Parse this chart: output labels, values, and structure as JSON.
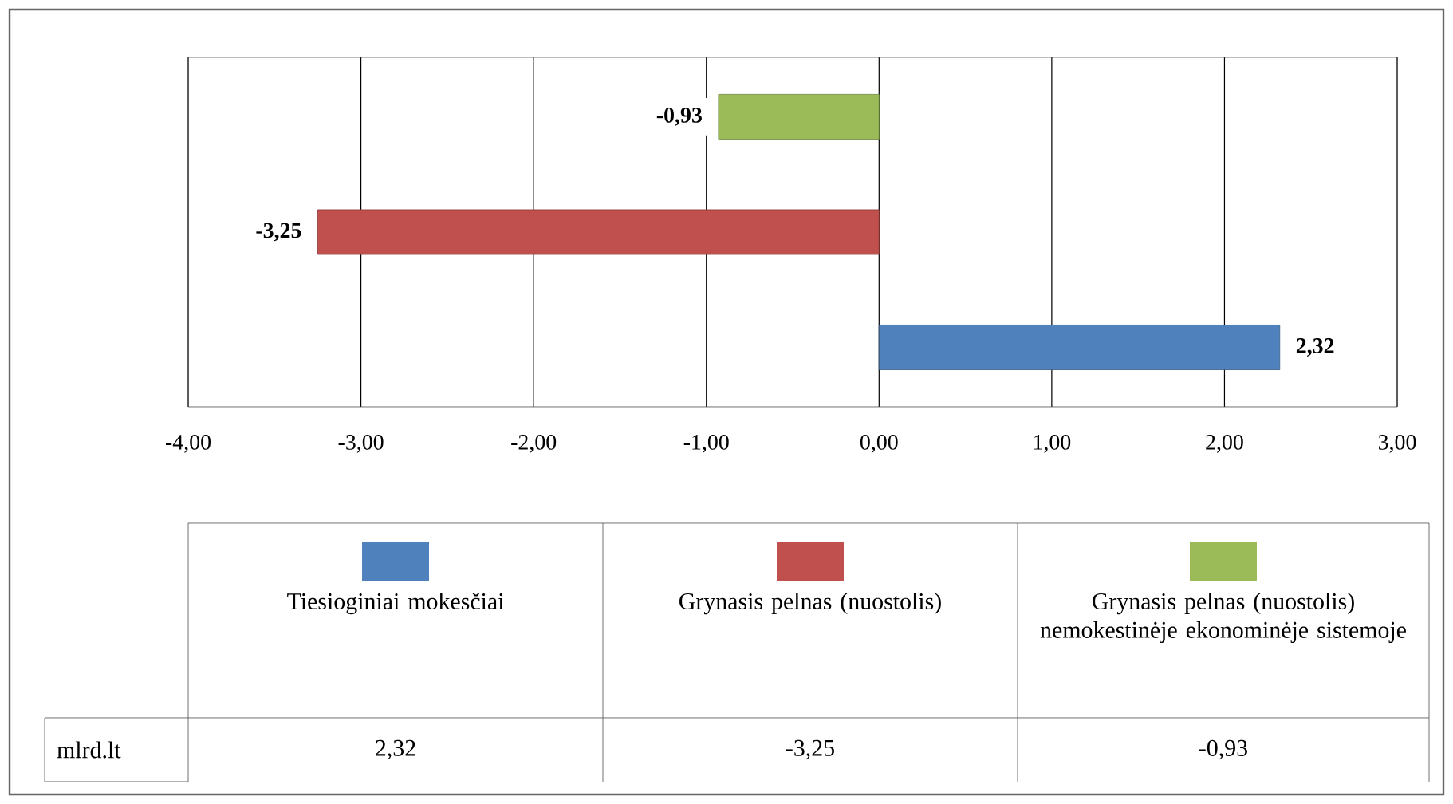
{
  "chart_data": {
    "type": "bar",
    "orientation": "horizontal",
    "categories": [
      null
    ],
    "series": [
      {
        "name": "Tiesioginiai mokesčiai",
        "color": "#4f81bd",
        "values": [
          2.32
        ],
        "value_labels": [
          "2,32"
        ]
      },
      {
        "name": "Grynasis pelnas (nuostolis)",
        "color": "#c0504d",
        "values": [
          -3.25
        ],
        "value_labels": [
          "-3,25"
        ]
      },
      {
        "name": "Grynasis pelnas (nuostolis) nemokestinėje ekonominėje sistemoje",
        "color": "#9bbb59",
        "values": [
          -0.93
        ],
        "value_labels": [
          "-0,93"
        ]
      }
    ],
    "xlim": [
      -4,
      3
    ],
    "xticks": [
      {
        "value": -4,
        "label": "-4,00"
      },
      {
        "value": -3,
        "label": "-3,00"
      },
      {
        "value": -2,
        "label": "-2,00"
      },
      {
        "value": -1,
        "label": "-1,00"
      },
      {
        "value": 0,
        "label": "0,00"
      },
      {
        "value": 1,
        "label": "1,00"
      },
      {
        "value": 2,
        "label": "2,00"
      },
      {
        "value": 3,
        "label": "3,00"
      }
    ],
    "grid": "x",
    "legend": "bottom",
    "annotations": [
      "mlrd.lt"
    ]
  }
}
